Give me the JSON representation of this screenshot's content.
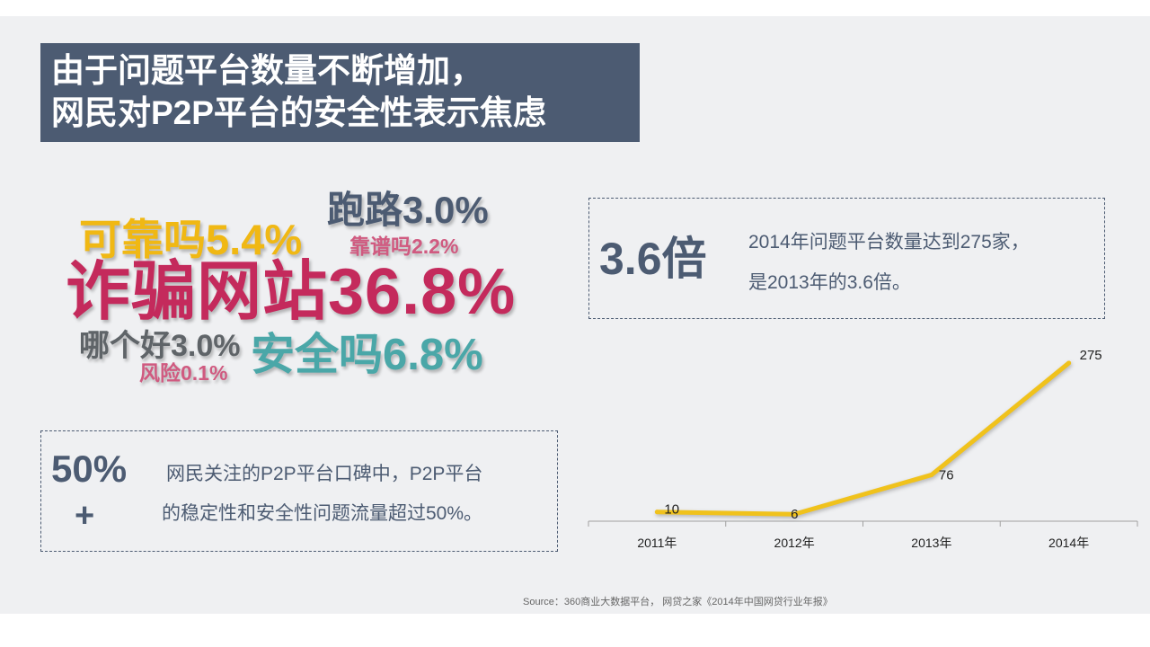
{
  "title": {
    "line1": "由于问题平台数量不断增加，",
    "line2": "网民对P2P平台的安全性表示焦虑"
  },
  "keywords": {
    "kaokao": "可靠吗5.4%",
    "paolu": "跑路3.0%",
    "kaopu": "靠谱吗2.2%",
    "zhapian": "诈骗网站36.8%",
    "nagehao": "哪个好3.0%",
    "anquan": "安全吗6.8%",
    "fengxian": "风险0.1%"
  },
  "colors": {
    "navy": "#4c5b72",
    "yellow": "#f0b814",
    "crimson": "#c42a5c",
    "pink": "#d05a80",
    "teal": "#4aa7a8",
    "gray": "#5f6468",
    "line": "#f0c21c"
  },
  "callout_top": {
    "big": "3.6倍",
    "line1": "2014年问题平台数量达到275家，",
    "line2": "是2013年的3.6倍。"
  },
  "callout_bottom": {
    "big": "50%",
    "plus": "+",
    "line1": "网民关注的P2P平台口碑中，P2P平台",
    "line2": "的稳定性和安全性问题流量超过50%。"
  },
  "chart_data": {
    "type": "line",
    "categories": [
      "2011年",
      "2012年",
      "2013年",
      "2014年"
    ],
    "series": [
      {
        "name": "问题平台数量",
        "values": [
          10,
          6,
          76,
          275
        ]
      }
    ],
    "ylim": [
      0,
      300
    ],
    "title": "",
    "xlabel": "",
    "ylabel": ""
  },
  "source": "Source：360商业大数据平台， 网贷之家《2014年中国网贷行业年报》"
}
